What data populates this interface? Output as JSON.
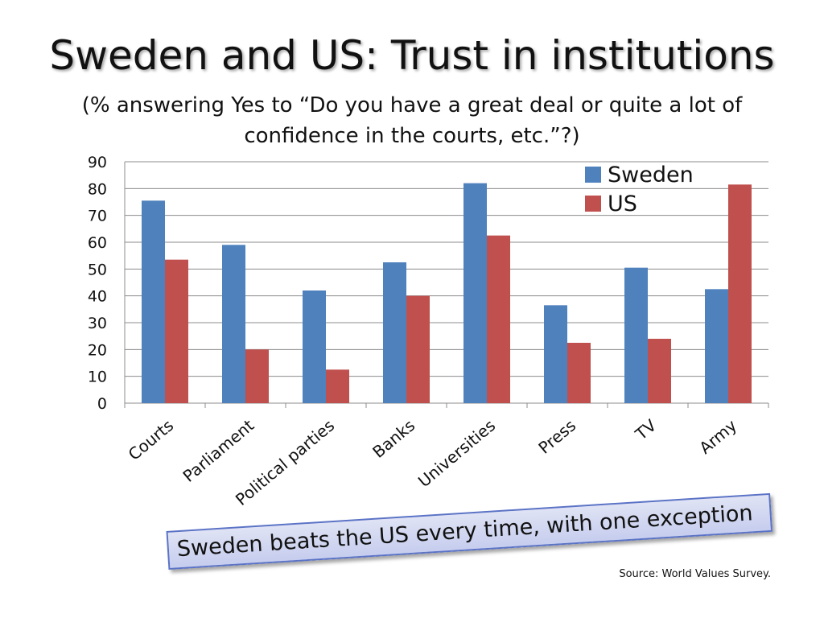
{
  "title": "Sweden and US: Trust in institutions",
  "subtitle": "(% answering Yes to “Do you have a great deal or quite a lot of confidence in the courts, etc.”?)",
  "callout": "Sweden beats the US every time, with one exception",
  "source": "Source: World Values Survey.",
  "chart_data": {
    "type": "bar",
    "categories": [
      "Courts",
      "Parliament",
      "Political parties",
      "Banks",
      "Universities",
      "Press",
      "TV",
      "Army"
    ],
    "series": [
      {
        "name": "Sweden",
        "color": "#4f81bd",
        "values": [
          75.5,
          59,
          42,
          52.5,
          82,
          36.5,
          50.5,
          42.5
        ]
      },
      {
        "name": "US",
        "color": "#c0504d",
        "values": [
          53.5,
          20,
          12.5,
          40,
          62.5,
          22.5,
          24,
          81.5
        ]
      }
    ],
    "ylim": [
      0,
      90
    ],
    "yticks": [
      0,
      10,
      20,
      30,
      40,
      50,
      60,
      70,
      80,
      90
    ],
    "grid": true,
    "legend_position": "top-right",
    "xlabel": "",
    "ylabel": ""
  }
}
